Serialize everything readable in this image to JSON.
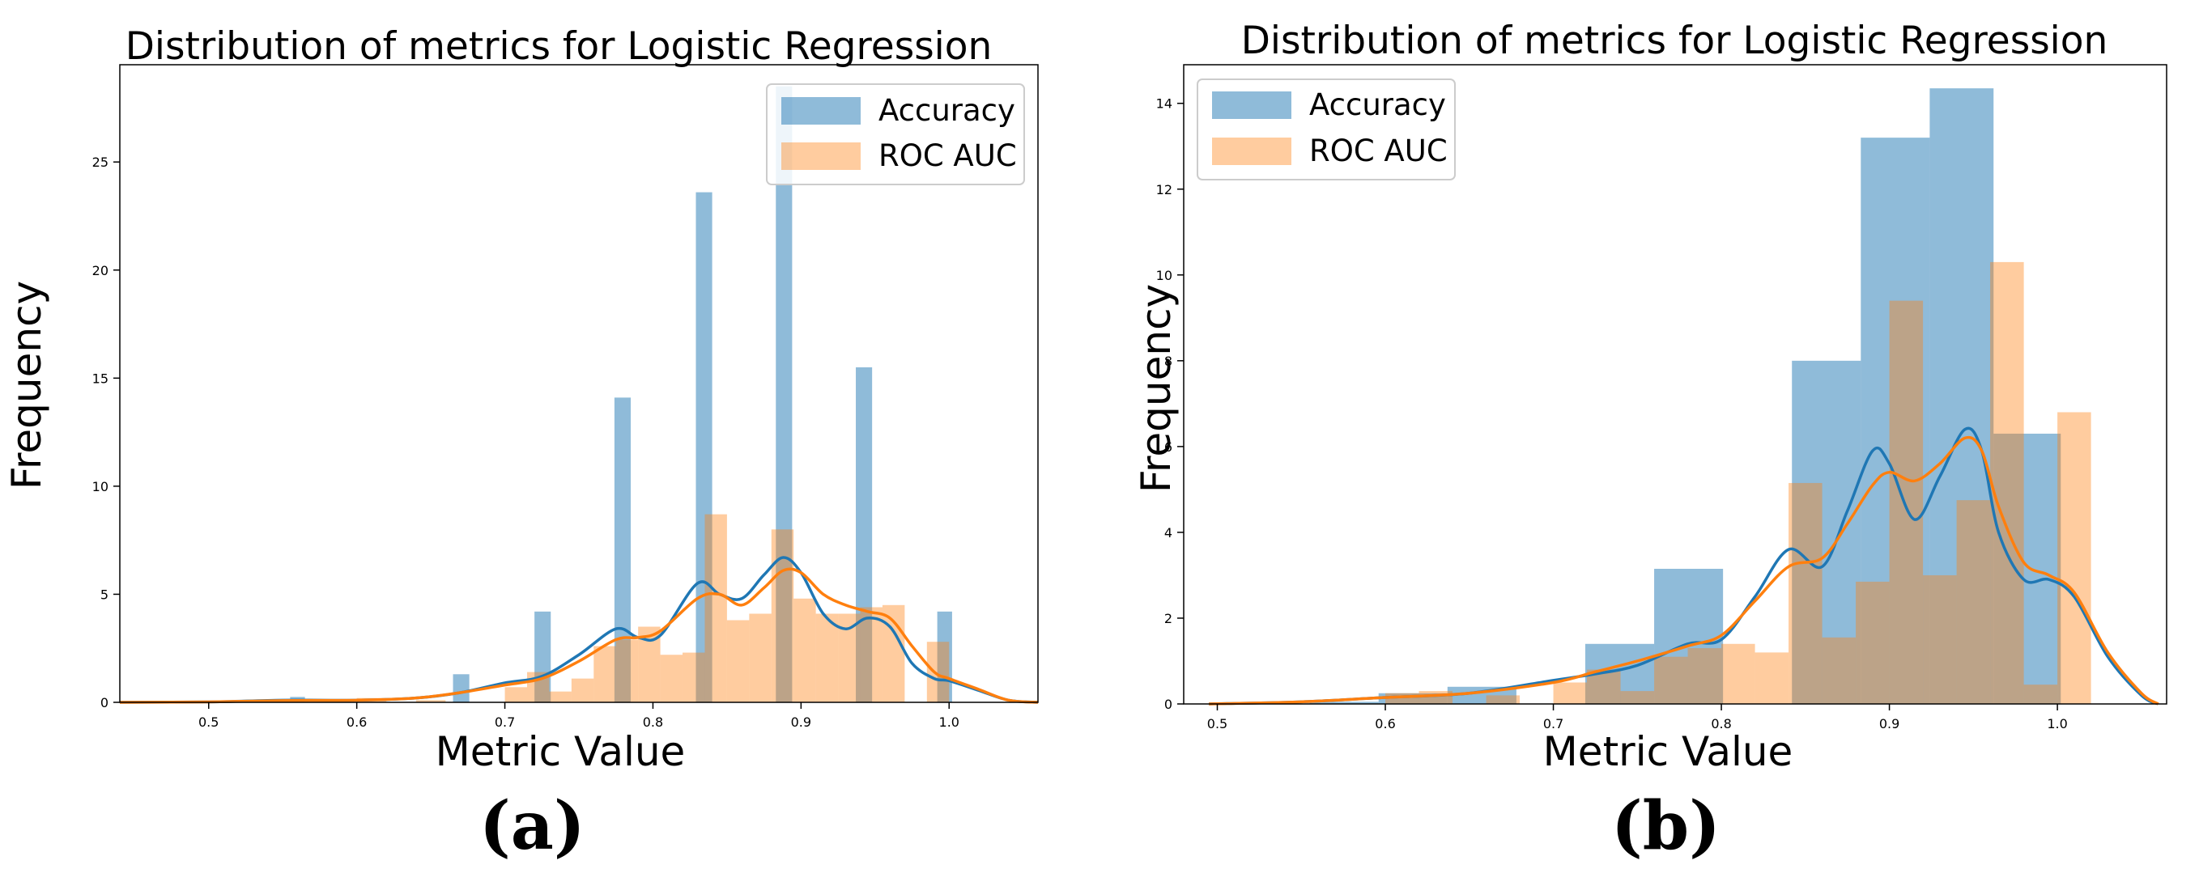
{
  "panels": [
    {
      "label": "(a)",
      "chart_data": {
        "type": "bar",
        "title": "Distribution of metrics for Logistic Regression",
        "xlabel": "Metric Value",
        "ylabel": "Frequency",
        "xlim": [
          0.44,
          1.06
        ],
        "ylim": [
          0,
          29.5
        ],
        "xticks": [
          0.5,
          0.6,
          0.7,
          0.8,
          0.9,
          1.0
        ],
        "xtick_labels": [
          "0.5",
          "0.6",
          "0.7",
          "0.8",
          "0.9",
          "1.0"
        ],
        "yticks": [
          0,
          5,
          10,
          15,
          20,
          25
        ],
        "ytick_labels": [
          "0",
          "5",
          "10",
          "15",
          "20",
          "25"
        ],
        "legend_position": "top-right",
        "series": [
          {
            "name": "Accuracy",
            "color": "#1f77b4",
            "bars": [
              {
                "x0": 0.555,
                "x1": 0.565,
                "y": 0.25
              },
              {
                "x0": 0.665,
                "x1": 0.676,
                "y": 1.3
              },
              {
                "x0": 0.72,
                "x1": 0.731,
                "y": 4.2
              },
              {
                "x0": 0.774,
                "x1": 0.785,
                "y": 14.1
              },
              {
                "x0": 0.829,
                "x1": 0.84,
                "y": 23.6
              },
              {
                "x0": 0.883,
                "x1": 0.894,
                "y": 28.5
              },
              {
                "x0": 0.937,
                "x1": 0.948,
                "y": 15.5
              },
              {
                "x0": 0.992,
                "x1": 1.002,
                "y": 4.2
              }
            ],
            "kde": {
              "x": [
                0.44,
                0.5,
                0.55,
                0.6,
                0.64,
                0.67,
                0.7,
                0.725,
                0.75,
                0.775,
                0.79,
                0.805,
                0.83,
                0.845,
                0.86,
                0.875,
                0.888,
                0.9,
                0.915,
                0.93,
                0.945,
                0.96,
                0.975,
                0.99,
                1.0,
                1.02,
                1.04,
                1.06
              ],
              "y": [
                0.0,
                0.02,
                0.1,
                0.1,
                0.2,
                0.45,
                0.9,
                1.2,
                2.2,
                3.4,
                3.0,
                3.1,
                5.5,
                5.0,
                4.8,
                5.9,
                6.7,
                6.0,
                4.1,
                3.4,
                3.9,
                3.5,
                1.8,
                1.1,
                1.0,
                0.55,
                0.1,
                0.0
              ]
            }
          },
          {
            "name": "ROC AUC",
            "color": "#ff7f0e",
            "bars": [
              {
                "x0": 0.6,
                "x1": 0.62,
                "y": 0.2
              },
              {
                "x0": 0.64,
                "x1": 0.66,
                "y": 0.1
              },
              {
                "x0": 0.7,
                "x1": 0.715,
                "y": 0.7
              },
              {
                "x0": 0.715,
                "x1": 0.73,
                "y": 1.4
              },
              {
                "x0": 0.73,
                "x1": 0.745,
                "y": 0.5
              },
              {
                "x0": 0.745,
                "x1": 0.76,
                "y": 1.1
              },
              {
                "x0": 0.76,
                "x1": 0.775,
                "y": 2.6
              },
              {
                "x0": 0.775,
                "x1": 0.79,
                "y": 2.9
              },
              {
                "x0": 0.79,
                "x1": 0.805,
                "y": 3.5
              },
              {
                "x0": 0.805,
                "x1": 0.82,
                "y": 2.2
              },
              {
                "x0": 0.82,
                "x1": 0.835,
                "y": 2.3
              },
              {
                "x0": 0.835,
                "x1": 0.85,
                "y": 8.7
              },
              {
                "x0": 0.85,
                "x1": 0.865,
                "y": 3.8
              },
              {
                "x0": 0.865,
                "x1": 0.88,
                "y": 4.1
              },
              {
                "x0": 0.88,
                "x1": 0.895,
                "y": 8.0
              },
              {
                "x0": 0.895,
                "x1": 0.91,
                "y": 4.8
              },
              {
                "x0": 0.91,
                "x1": 0.925,
                "y": 4.1
              },
              {
                "x0": 0.925,
                "x1": 0.94,
                "y": 4.1
              },
              {
                "x0": 0.94,
                "x1": 0.955,
                "y": 4.4
              },
              {
                "x0": 0.955,
                "x1": 0.97,
                "y": 4.5
              },
              {
                "x0": 0.985,
                "x1": 1.0,
                "y": 2.8
              }
            ],
            "kde": {
              "x": [
                0.44,
                0.5,
                0.55,
                0.6,
                0.64,
                0.67,
                0.7,
                0.725,
                0.75,
                0.775,
                0.79,
                0.805,
                0.83,
                0.845,
                0.86,
                0.875,
                0.888,
                0.9,
                0.915,
                0.93,
                0.945,
                0.96,
                0.975,
                0.99,
                1.0,
                1.02,
                1.04,
                1.06
              ],
              "y": [
                0.0,
                0.02,
                0.08,
                0.1,
                0.2,
                0.45,
                0.8,
                1.1,
                1.9,
                2.9,
                3.0,
                3.3,
                4.8,
                5.0,
                4.5,
                5.3,
                6.1,
                6.0,
                5.0,
                4.5,
                4.2,
                3.9,
                2.6,
                1.4,
                1.1,
                0.6,
                0.1,
                0.0
              ]
            }
          }
        ]
      }
    },
    {
      "label": "(b)",
      "chart_data": {
        "type": "bar",
        "title": "Distribution of metrics for Logistic Regression",
        "xlabel": "Metric Value",
        "ylabel": "Frequency",
        "xlim": [
          0.48,
          1.065
        ],
        "ylim": [
          0,
          14.9
        ],
        "xticks": [
          0.5,
          0.6,
          0.7,
          0.8,
          0.9,
          1.0
        ],
        "xtick_labels": [
          "0.5",
          "0.6",
          "0.7",
          "0.8",
          "0.9",
          "1.0"
        ],
        "yticks": [
          0,
          2,
          4,
          6,
          8,
          10,
          12,
          14
        ],
        "ytick_labels": [
          "0",
          "2",
          "4",
          "6",
          "8",
          "10",
          "12",
          "14"
        ],
        "legend_position": "top-left",
        "series": [
          {
            "name": "Accuracy",
            "color": "#1f77b4",
            "bars": [
              {
                "x0": 0.555,
                "x1": 0.596,
                "y": 0.05
              },
              {
                "x0": 0.596,
                "x1": 0.637,
                "y": 0.25
              },
              {
                "x0": 0.637,
                "x1": 0.678,
                "y": 0.4
              },
              {
                "x0": 0.719,
                "x1": 0.76,
                "y": 1.4
              },
              {
                "x0": 0.76,
                "x1": 0.801,
                "y": 3.15
              },
              {
                "x0": 0.801,
                "x1": 0.842,
                "y": 0.0
              },
              {
                "x0": 0.842,
                "x1": 0.883,
                "y": 8.0
              },
              {
                "x0": 0.883,
                "x1": 0.924,
                "y": 13.2
              },
              {
                "x0": 0.924,
                "x1": 0.962,
                "y": 14.35
              },
              {
                "x0": 0.962,
                "x1": 1.002,
                "y": 6.3
              }
            ],
            "kde": {
              "x": [
                0.495,
                0.55,
                0.6,
                0.65,
                0.7,
                0.725,
                0.75,
                0.78,
                0.8,
                0.82,
                0.84,
                0.86,
                0.875,
                0.89,
                0.9,
                0.915,
                0.93,
                0.945,
                0.955,
                0.965,
                0.98,
                0.995,
                1.01,
                1.03,
                1.05,
                1.06
              ],
              "y": [
                0.0,
                0.05,
                0.15,
                0.25,
                0.55,
                0.7,
                0.9,
                1.4,
                1.5,
                2.5,
                3.6,
                3.2,
                4.5,
                5.9,
                5.6,
                4.3,
                5.3,
                6.4,
                5.9,
                4.0,
                2.9,
                2.9,
                2.5,
                1.1,
                0.2,
                0.0
              ]
            }
          },
          {
            "name": "ROC AUC",
            "color": "#ff7f0e",
            "bars": [
              {
                "x0": 0.6,
                "x1": 0.62,
                "y": 0.25
              },
              {
                "x0": 0.62,
                "x1": 0.64,
                "y": 0.3
              },
              {
                "x0": 0.66,
                "x1": 0.68,
                "y": 0.2
              },
              {
                "x0": 0.7,
                "x1": 0.72,
                "y": 0.5
              },
              {
                "x0": 0.72,
                "x1": 0.74,
                "y": 0.8
              },
              {
                "x0": 0.74,
                "x1": 0.76,
                "y": 0.3
              },
              {
                "x0": 0.76,
                "x1": 0.78,
                "y": 1.1
              },
              {
                "x0": 0.78,
                "x1": 0.8,
                "y": 1.3
              },
              {
                "x0": 0.8,
                "x1": 0.82,
                "y": 1.4
              },
              {
                "x0": 0.82,
                "x1": 0.84,
                "y": 1.2
              },
              {
                "x0": 0.84,
                "x1": 0.86,
                "y": 5.15
              },
              {
                "x0": 0.86,
                "x1": 0.88,
                "y": 1.55
              },
              {
                "x0": 0.88,
                "x1": 0.9,
                "y": 2.85
              },
              {
                "x0": 0.9,
                "x1": 0.92,
                "y": 9.4
              },
              {
                "x0": 0.92,
                "x1": 0.94,
                "y": 3.0
              },
              {
                "x0": 0.94,
                "x1": 0.96,
                "y": 4.75
              },
              {
                "x0": 0.96,
                "x1": 0.98,
                "y": 10.3
              },
              {
                "x0": 0.98,
                "x1": 1.0,
                "y": 0.45
              },
              {
                "x0": 1.0,
                "x1": 1.02,
                "y": 6.8
              }
            ],
            "kde": {
              "x": [
                0.495,
                0.55,
                0.6,
                0.65,
                0.7,
                0.725,
                0.75,
                0.78,
                0.8,
                0.82,
                0.84,
                0.86,
                0.875,
                0.89,
                0.9,
                0.915,
                0.93,
                0.945,
                0.955,
                0.965,
                0.98,
                0.995,
                1.01,
                1.03,
                1.05,
                1.06
              ],
              "y": [
                0.0,
                0.05,
                0.15,
                0.25,
                0.5,
                0.75,
                1.0,
                1.35,
                1.6,
                2.4,
                3.2,
                3.4,
                4.2,
                5.1,
                5.4,
                5.2,
                5.6,
                6.2,
                5.9,
                4.6,
                3.3,
                3.0,
                2.6,
                1.2,
                0.25,
                0.0
              ]
            }
          }
        ]
      }
    }
  ]
}
